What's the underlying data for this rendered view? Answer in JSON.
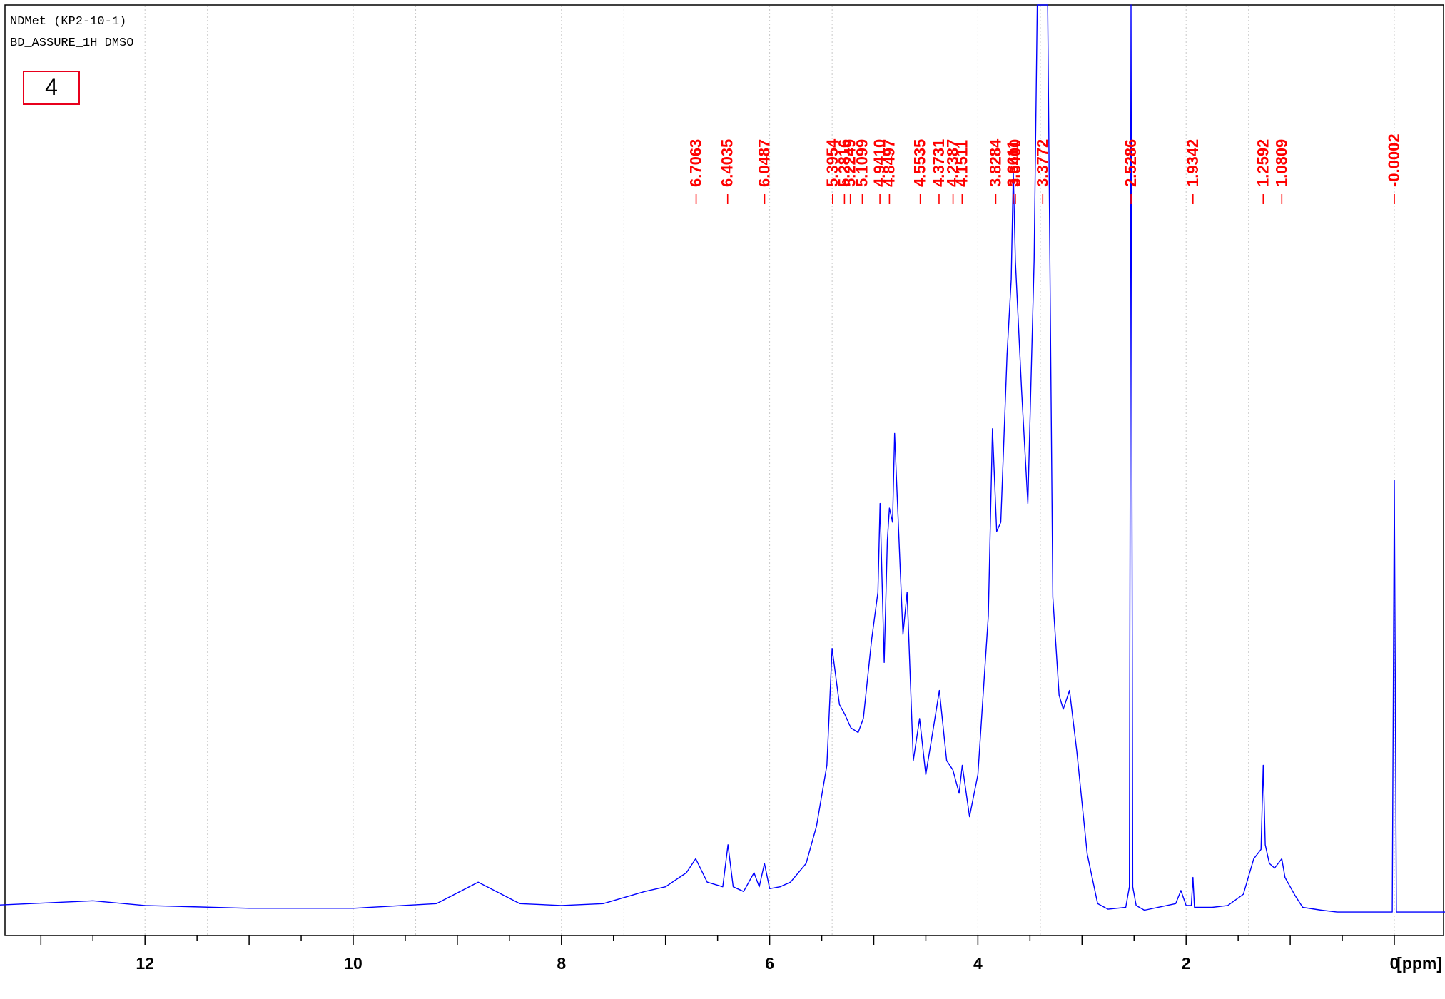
{
  "header": {
    "line1": "NDMet (KP2-10-1)",
    "line2": "BD_ASSURE_1H DMSO",
    "panel_label": "4"
  },
  "colors": {
    "spectrum": "#0000ff",
    "peak_labels": "#ff0000",
    "label_box": "#e8001c",
    "axis": "#000000",
    "grid": "#c8c8c8"
  },
  "chart_data": {
    "type": "line",
    "title": "",
    "xlabel": "[ppm]",
    "ylabel": "",
    "x_reversed": true,
    "xlim": [
      13.5,
      -0.7
    ],
    "ylim": [
      -0.1,
      1.0
    ],
    "grid": "vertical-dotted",
    "x_ticks_major": [
      12,
      10,
      8,
      6,
      4,
      2,
      0
    ],
    "x_tick_labels": [
      "12",
      "10",
      "8",
      "6",
      "4",
      "2",
      "0"
    ],
    "series": [
      {
        "values": [
          [
            13.5,
            0.01
          ],
          [
            12.5,
            0.015
          ],
          [
            12.0,
            0.01
          ],
          [
            11.0,
            0.007
          ],
          [
            10.0,
            0.007
          ],
          [
            9.2,
            0.012
          ],
          [
            8.8,
            0.035
          ],
          [
            8.4,
            0.012
          ],
          [
            8.0,
            0.01
          ],
          [
            7.6,
            0.012
          ],
          [
            7.2,
            0.025
          ],
          [
            7.0,
            0.03
          ],
          [
            6.8,
            0.045
          ],
          [
            6.71,
            0.06
          ],
          [
            6.6,
            0.035
          ],
          [
            6.45,
            0.03
          ],
          [
            6.4,
            0.075
          ],
          [
            6.35,
            0.03
          ],
          [
            6.25,
            0.025
          ],
          [
            6.15,
            0.045
          ],
          [
            6.1,
            0.03
          ],
          [
            6.05,
            0.055
          ],
          [
            6.0,
            0.028
          ],
          [
            5.9,
            0.03
          ],
          [
            5.8,
            0.035
          ],
          [
            5.65,
            0.055
          ],
          [
            5.55,
            0.095
          ],
          [
            5.45,
            0.16
          ],
          [
            5.4,
            0.285
          ],
          [
            5.33,
            0.225
          ],
          [
            5.28,
            0.215
          ],
          [
            5.22,
            0.2
          ],
          [
            5.15,
            0.195
          ],
          [
            5.1,
            0.21
          ],
          [
            5.02,
            0.295
          ],
          [
            4.96,
            0.345
          ],
          [
            4.94,
            0.44
          ],
          [
            4.9,
            0.27
          ],
          [
            4.87,
            0.4
          ],
          [
            4.85,
            0.435
          ],
          [
            4.82,
            0.42
          ],
          [
            4.8,
            0.515
          ],
          [
            4.75,
            0.38
          ],
          [
            4.72,
            0.3
          ],
          [
            4.68,
            0.345
          ],
          [
            4.62,
            0.165
          ],
          [
            4.56,
            0.21
          ],
          [
            4.5,
            0.15
          ],
          [
            4.42,
            0.205
          ],
          [
            4.37,
            0.24
          ],
          [
            4.3,
            0.165
          ],
          [
            4.24,
            0.155
          ],
          [
            4.18,
            0.13
          ],
          [
            4.15,
            0.16
          ],
          [
            4.08,
            0.105
          ],
          [
            4.0,
            0.15
          ],
          [
            3.95,
            0.235
          ],
          [
            3.9,
            0.32
          ],
          [
            3.86,
            0.52
          ],
          [
            3.82,
            0.41
          ],
          [
            3.78,
            0.42
          ],
          [
            3.72,
            0.6
          ],
          [
            3.68,
            0.68
          ],
          [
            3.66,
            0.795
          ],
          [
            3.64,
            0.7
          ],
          [
            3.58,
            0.56
          ],
          [
            3.52,
            0.44
          ],
          [
            3.46,
            0.7
          ],
          [
            3.43,
            0.985
          ],
          [
            3.38,
            1.0
          ],
          [
            3.33,
            0.985
          ],
          [
            3.28,
            0.34
          ],
          [
            3.22,
            0.235
          ],
          [
            3.18,
            0.22
          ],
          [
            3.12,
            0.24
          ],
          [
            3.05,
            0.175
          ],
          [
            2.95,
            0.065
          ],
          [
            2.85,
            0.012
          ],
          [
            2.75,
            0.006
          ],
          [
            2.58,
            0.008
          ],
          [
            2.545,
            0.03
          ],
          [
            2.529,
            1.0
          ],
          [
            2.513,
            0.03
          ],
          [
            2.48,
            0.01
          ],
          [
            2.4,
            0.005
          ],
          [
            2.1,
            0.012
          ],
          [
            2.05,
            0.026
          ],
          [
            2.0,
            0.01
          ],
          [
            1.95,
            0.01
          ],
          [
            1.934,
            0.04
          ],
          [
            1.92,
            0.008
          ],
          [
            1.75,
            0.008
          ],
          [
            1.6,
            0.01
          ],
          [
            1.45,
            0.022
          ],
          [
            1.35,
            0.06
          ],
          [
            1.28,
            0.07
          ],
          [
            1.259,
            0.16
          ],
          [
            1.24,
            0.075
          ],
          [
            1.2,
            0.055
          ],
          [
            1.15,
            0.05
          ],
          [
            1.081,
            0.06
          ],
          [
            1.05,
            0.04
          ],
          [
            0.95,
            0.02
          ],
          [
            0.88,
            0.008
          ],
          [
            0.7,
            0.005
          ],
          [
            0.55,
            0.003
          ],
          [
            0.02,
            0.003
          ],
          [
            0.0002,
            0.465
          ],
          [
            -0.02,
            0.003
          ],
          [
            -0.7,
            0.003
          ]
        ]
      }
    ],
    "peak_labels": [
      "6.7063",
      "6.4035",
      "6.0487",
      "5.3954",
      "5.2816",
      "5.2249",
      "5.1099",
      "4.9410",
      "4.8497",
      "4.5535",
      "4.3731",
      "4.2387",
      "4.1511",
      "3.8284",
      "3.6611",
      "3.6400",
      "3.3772",
      "2.5286",
      "1.9342",
      "1.2592",
      "1.0809",
      "-0.0002"
    ]
  }
}
